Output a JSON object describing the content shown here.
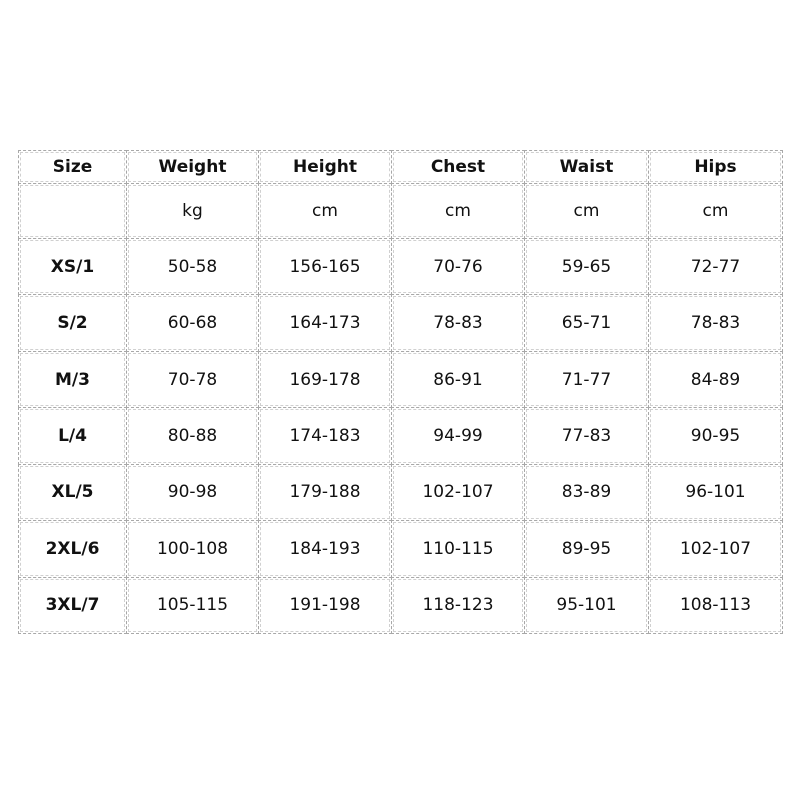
{
  "table": {
    "header": [
      "Size",
      "Weight",
      "Height",
      "Chest",
      "Waist",
      "Hips"
    ],
    "units": [
      "kg",
      "cm",
      "cm",
      "cm",
      "cm"
    ],
    "rows": [
      [
        "XS/1",
        "50-58",
        "156-165",
        "70-76",
        "59-65",
        "72-77"
      ],
      [
        "S/2",
        "60-68",
        "164-173",
        "78-83",
        "65-71",
        "78-83"
      ],
      [
        "M/3",
        "70-78",
        "169-178",
        "86-91",
        "71-77",
        "84-89"
      ],
      [
        "L/4",
        "80-88",
        "174-183",
        "94-99",
        "77-83",
        "90-95"
      ],
      [
        "XL/5",
        "90-98",
        "179-188",
        "102-107",
        "83-89",
        "96-101"
      ],
      [
        "2XL/6",
        "100-108",
        "184-193",
        "110-115",
        "89-95",
        "102-107"
      ],
      [
        "3XL/7",
        "105-115",
        "191-198",
        "118-123",
        "95-101",
        "108-113"
      ]
    ]
  }
}
